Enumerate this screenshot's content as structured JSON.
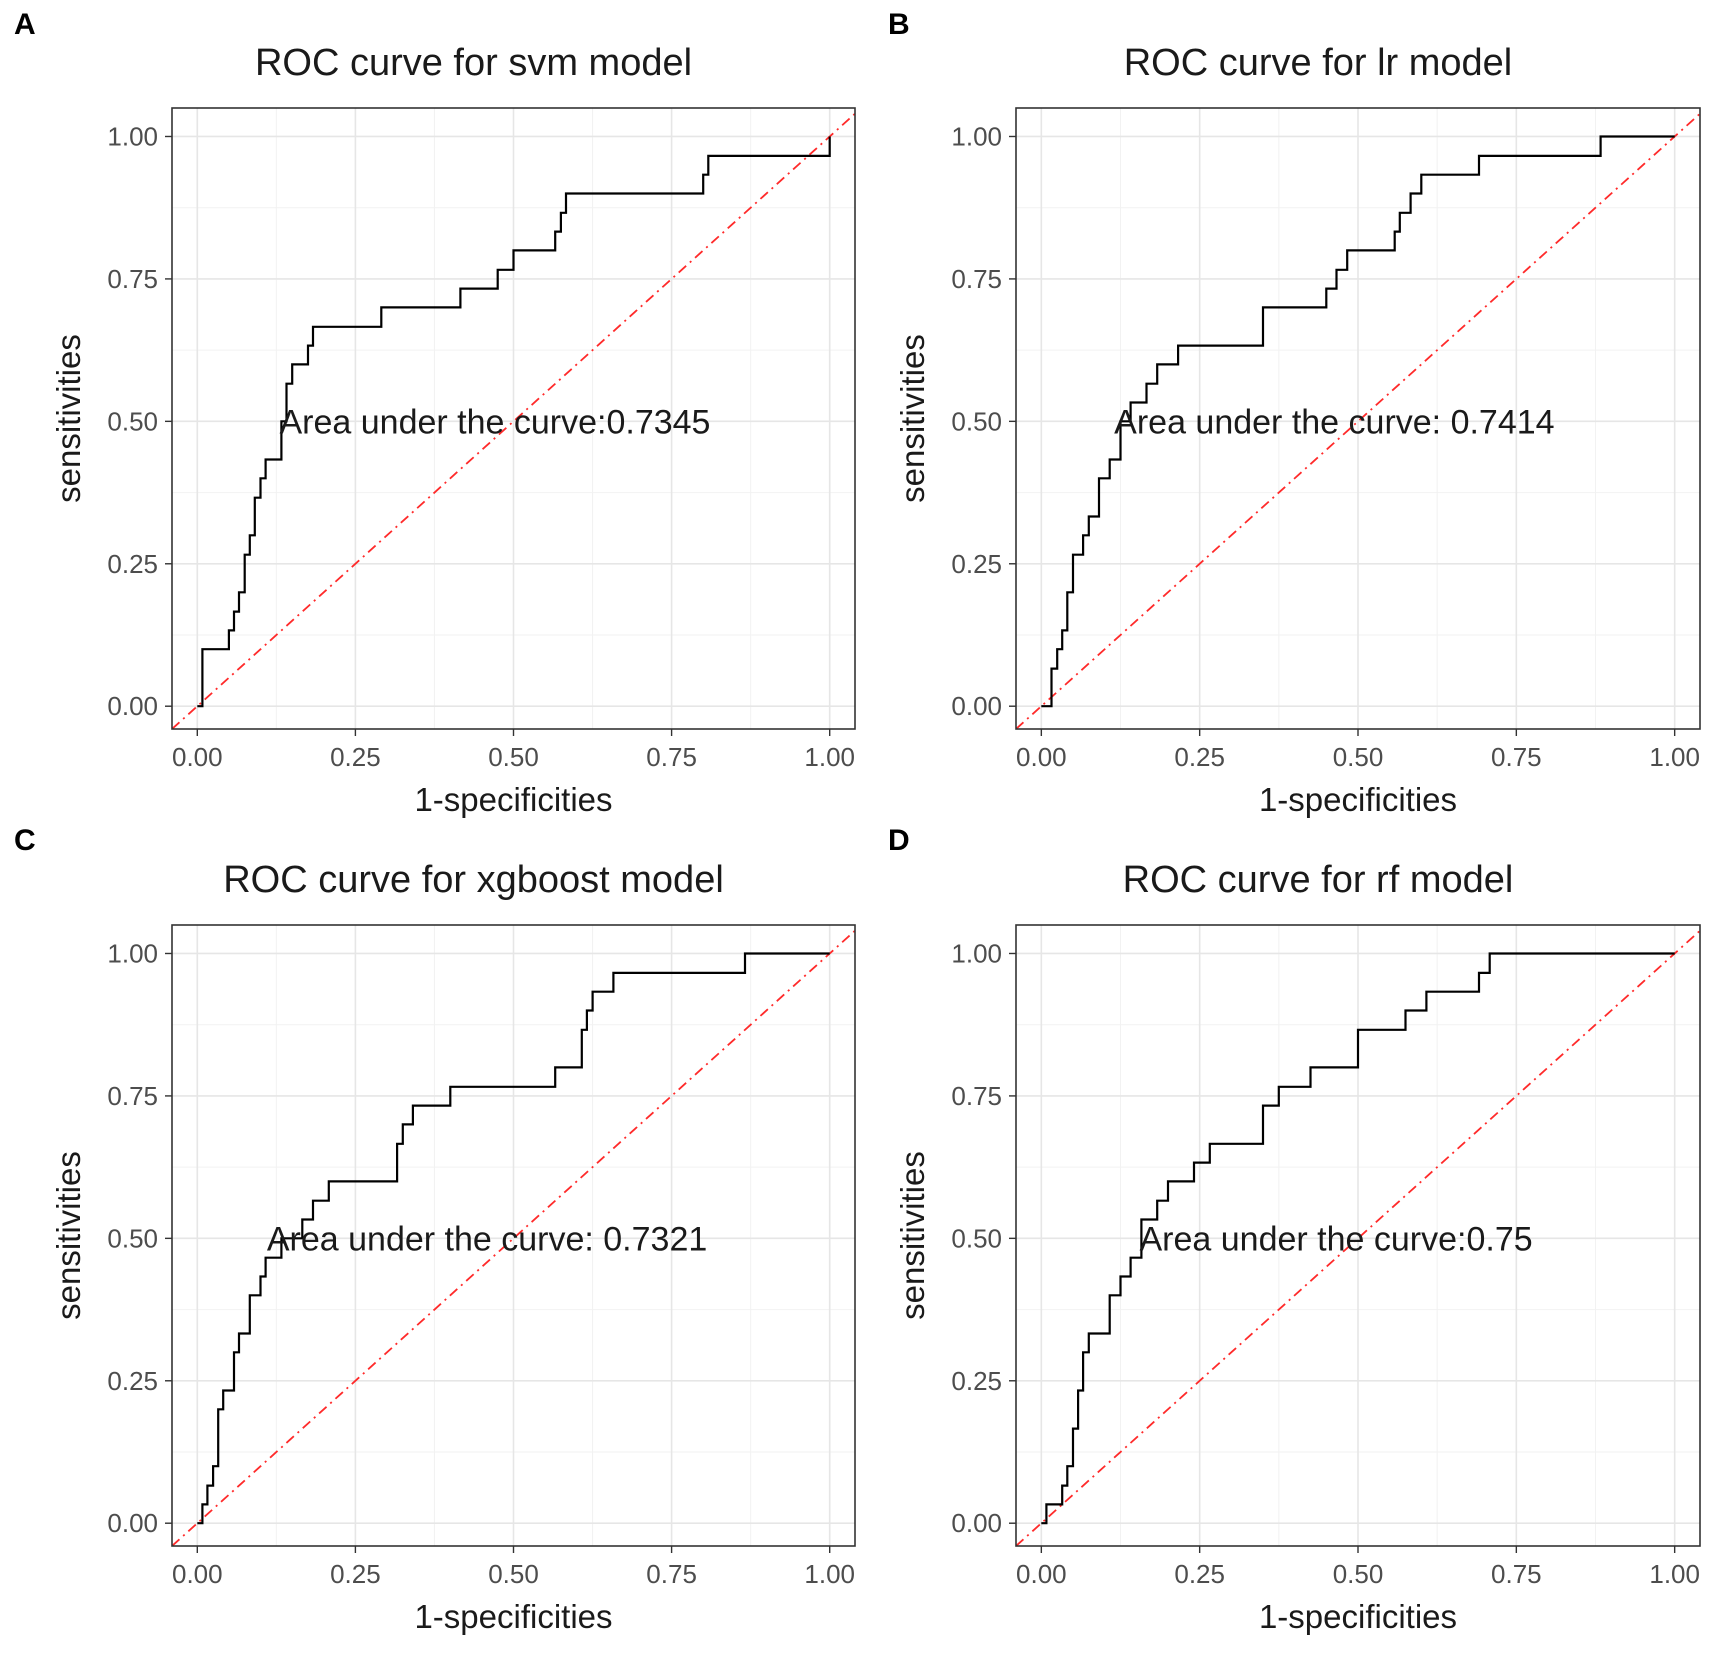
{
  "chart_data": [
    {
      "type": "line",
      "panel_label": "A",
      "title": "ROC curve for svm model",
      "xlabel": "1-specificities",
      "ylabel": "sensitivities",
      "xlim": [
        -0.04,
        1.04
      ],
      "ylim": [
        -0.04,
        1.05
      ],
      "xticks": [
        "0.00",
        "0.25",
        "0.50",
        "0.75",
        "1.00"
      ],
      "yticks": [
        "0.00",
        "0.25",
        "0.50",
        "0.75",
        "1.00"
      ],
      "grid": true,
      "annotation": "Area under the curve:0.7345",
      "annotation_xy": [
        0.13,
        0.5
      ],
      "series": [
        {
          "name": "ROC",
          "x": [
            0.0,
            0.008,
            0.008,
            0.05,
            0.05,
            0.058,
            0.058,
            0.066,
            0.066,
            0.075,
            0.075,
            0.083,
            0.083,
            0.091,
            0.091,
            0.1,
            0.1,
            0.108,
            0.108,
            0.133,
            0.133,
            0.141,
            0.141,
            0.15,
            0.15,
            0.175,
            0.175,
            0.183,
            0.183,
            0.191,
            0.191,
            0.2,
            0.2,
            0.291,
            0.291,
            0.416,
            0.416,
            0.475,
            0.475,
            0.5,
            0.5,
            0.566,
            0.566,
            0.575,
            0.575,
            0.583,
            0.583,
            0.591,
            0.591,
            0.8,
            0.8,
            0.808,
            0.808,
            1.0,
            1.0
          ],
          "y": [
            0.0,
            0.0,
            0.1,
            0.1,
            0.133,
            0.133,
            0.166,
            0.166,
            0.2,
            0.2,
            0.266,
            0.266,
            0.3,
            0.3,
            0.366,
            0.366,
            0.4,
            0.4,
            0.433,
            0.433,
            0.5,
            0.5,
            0.566,
            0.566,
            0.6,
            0.6,
            0.633,
            0.633,
            0.666,
            0.666,
            0.666,
            0.666,
            0.666,
            0.666,
            0.7,
            0.7,
            0.733,
            0.733,
            0.766,
            0.766,
            0.8,
            0.8,
            0.833,
            0.833,
            0.866,
            0.866,
            0.9,
            0.9,
            0.9,
            0.9,
            0.933,
            0.933,
            0.966,
            0.966,
            1.0
          ]
        }
      ]
    },
    {
      "type": "line",
      "panel_label": "B",
      "title": "ROC curve for lr model",
      "xlabel": "1-specificities",
      "ylabel": "sensitivities",
      "xlim": [
        -0.04,
        1.04
      ],
      "ylim": [
        -0.04,
        1.05
      ],
      "xticks": [
        "0.00",
        "0.25",
        "0.50",
        "0.75",
        "1.00"
      ],
      "yticks": [
        "0.00",
        "0.25",
        "0.50",
        "0.75",
        "1.00"
      ],
      "grid": true,
      "annotation": "Area under the curve: 0.7414",
      "annotation_xy": [
        0.115,
        0.5
      ],
      "series": [
        {
          "name": "ROC",
          "x": [
            0.0,
            0.016,
            0.016,
            0.025,
            0.025,
            0.033,
            0.033,
            0.041,
            0.041,
            0.05,
            0.05,
            0.066,
            0.066,
            0.075,
            0.075,
            0.091,
            0.091,
            0.108,
            0.108,
            0.125,
            0.125,
            0.141,
            0.141,
            0.166,
            0.166,
            0.183,
            0.183,
            0.2,
            0.2,
            0.216,
            0.216,
            0.241,
            0.241,
            0.35,
            0.35,
            0.45,
            0.45,
            0.466,
            0.466,
            0.483,
            0.483,
            0.558,
            0.558,
            0.566,
            0.566,
            0.583,
            0.583,
            0.6,
            0.6,
            0.691,
            0.691,
            0.883,
            0.883,
            1.0
          ],
          "y": [
            0.0,
            0.0,
            0.066,
            0.066,
            0.1,
            0.1,
            0.133,
            0.133,
            0.2,
            0.2,
            0.266,
            0.266,
            0.3,
            0.3,
            0.333,
            0.333,
            0.4,
            0.4,
            0.433,
            0.433,
            0.5,
            0.5,
            0.533,
            0.533,
            0.566,
            0.566,
            0.6,
            0.6,
            0.6,
            0.6,
            0.633,
            0.633,
            0.633,
            0.633,
            0.7,
            0.7,
            0.733,
            0.733,
            0.766,
            0.766,
            0.8,
            0.8,
            0.833,
            0.833,
            0.866,
            0.866,
            0.9,
            0.9,
            0.933,
            0.933,
            0.966,
            0.966,
            1.0,
            1.0
          ]
        }
      ]
    },
    {
      "type": "line",
      "panel_label": "C",
      "title": "ROC curve for xgboost model",
      "xlabel": "1-specificities",
      "ylabel": "sensitivities",
      "xlim": [
        -0.04,
        1.04
      ],
      "ylim": [
        -0.04,
        1.05
      ],
      "xticks": [
        "0.00",
        "0.25",
        "0.50",
        "0.75",
        "1.00"
      ],
      "yticks": [
        "0.00",
        "0.25",
        "0.50",
        "0.75",
        "1.00"
      ],
      "grid": true,
      "annotation": "Area under the curve: 0.7321",
      "annotation_xy": [
        0.11,
        0.5
      ],
      "series": [
        {
          "name": "ROC",
          "x": [
            0.0,
            0.008,
            0.008,
            0.016,
            0.016,
            0.025,
            0.025,
            0.033,
            0.033,
            0.041,
            0.041,
            0.058,
            0.058,
            0.066,
            0.066,
            0.083,
            0.083,
            0.1,
            0.1,
            0.108,
            0.108,
            0.133,
            0.133,
            0.166,
            0.166,
            0.183,
            0.183,
            0.208,
            0.208,
            0.225,
            0.225,
            0.241,
            0.241,
            0.316,
            0.316,
            0.325,
            0.325,
            0.341,
            0.341,
            0.4,
            0.4,
            0.566,
            0.566,
            0.608,
            0.608,
            0.616,
            0.616,
            0.625,
            0.625,
            0.658,
            0.658,
            0.7,
            0.7,
            0.866,
            0.866,
            1.0
          ],
          "y": [
            0.0,
            0.0,
            0.033,
            0.033,
            0.066,
            0.066,
            0.1,
            0.1,
            0.2,
            0.2,
            0.233,
            0.233,
            0.3,
            0.3,
            0.333,
            0.333,
            0.4,
            0.4,
            0.433,
            0.433,
            0.466,
            0.466,
            0.5,
            0.5,
            0.533,
            0.533,
            0.566,
            0.566,
            0.6,
            0.6,
            0.6,
            0.6,
            0.6,
            0.6,
            0.666,
            0.666,
            0.7,
            0.7,
            0.733,
            0.733,
            0.766,
            0.766,
            0.8,
            0.8,
            0.866,
            0.866,
            0.9,
            0.9,
            0.933,
            0.933,
            0.966,
            0.966,
            0.966,
            0.966,
            1.0,
            1.0
          ]
        }
      ]
    },
    {
      "type": "line",
      "panel_label": "D",
      "title": "ROC curve for rf model",
      "xlabel": "1-specificities",
      "ylabel": "sensitivities",
      "xlim": [
        -0.04,
        1.04
      ],
      "ylim": [
        -0.04,
        1.05
      ],
      "xticks": [
        "0.00",
        "0.25",
        "0.50",
        "0.75",
        "1.00"
      ],
      "yticks": [
        "0.00",
        "0.25",
        "0.50",
        "0.75",
        "1.00"
      ],
      "grid": true,
      "annotation": "Area under the curve:0.75",
      "annotation_xy": [
        0.155,
        0.5
      ],
      "series": [
        {
          "name": "ROC",
          "x": [
            0.0,
            0.008,
            0.008,
            0.033,
            0.033,
            0.041,
            0.041,
            0.05,
            0.05,
            0.058,
            0.058,
            0.066,
            0.066,
            0.075,
            0.075,
            0.108,
            0.108,
            0.125,
            0.125,
            0.141,
            0.141,
            0.158,
            0.158,
            0.183,
            0.183,
            0.2,
            0.2,
            0.241,
            0.241,
            0.266,
            0.266,
            0.291,
            0.291,
            0.35,
            0.35,
            0.375,
            0.375,
            0.425,
            0.425,
            0.5,
            0.5,
            0.575,
            0.575,
            0.608,
            0.608,
            0.691,
            0.691,
            0.708,
            0.708,
            1.0
          ],
          "y": [
            0.0,
            0.0,
            0.033,
            0.033,
            0.066,
            0.066,
            0.1,
            0.1,
            0.166,
            0.166,
            0.233,
            0.233,
            0.3,
            0.3,
            0.333,
            0.333,
            0.4,
            0.4,
            0.433,
            0.433,
            0.466,
            0.466,
            0.533,
            0.533,
            0.566,
            0.566,
            0.6,
            0.6,
            0.633,
            0.633,
            0.666,
            0.666,
            0.666,
            0.666,
            0.733,
            0.733,
            0.766,
            0.766,
            0.8,
            0.8,
            0.866,
            0.866,
            0.9,
            0.9,
            0.933,
            0.933,
            0.966,
            0.966,
            1.0,
            1.0
          ]
        }
      ]
    }
  ]
}
